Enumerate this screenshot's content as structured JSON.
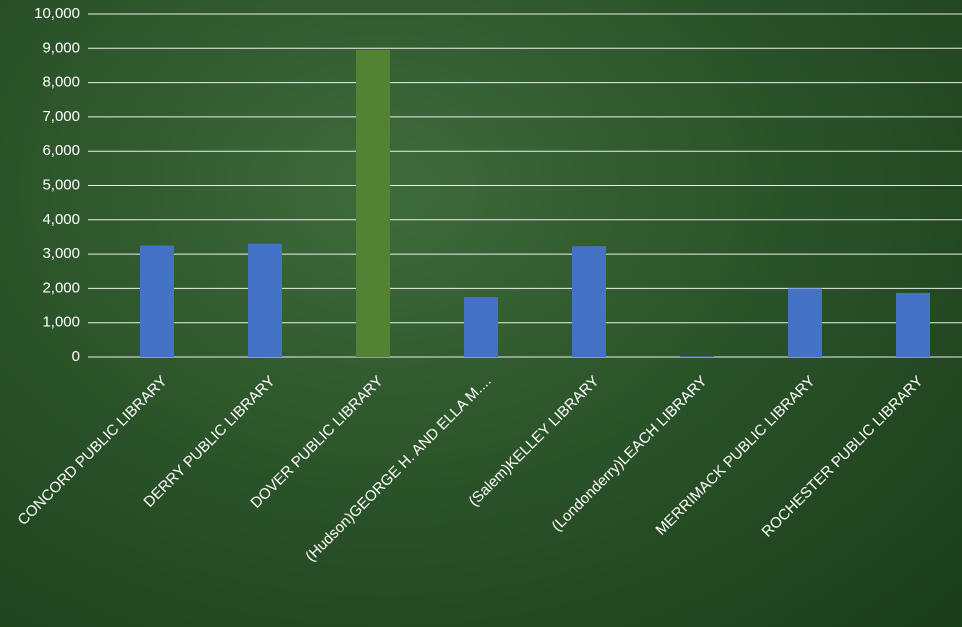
{
  "chart_data": {
    "type": "bar",
    "categories": [
      "CONCORD PUBLIC LIBRARY",
      "DERRY PUBLIC LIBRARY",
      "DOVER PUBLIC LIBRARY",
      "(Hudson)GEORGE H. AND ELLA M....",
      "(Salem)KELLEY LIBRARY",
      "(Londonderry)LEACH LIBRARY",
      "MERRIMACK PUBLIC LIBRARY",
      "ROCHESTER PUBLIC LIBRARY"
    ],
    "values": [
      3250,
      3300,
      8950,
      1750,
      3230,
      20,
      2000,
      1870
    ],
    "colors": [
      "#4472c4",
      "#4472c4",
      "#548235",
      "#4472c4",
      "#4472c4",
      "#4472c4",
      "#4472c4",
      "#4472c4"
    ],
    "ylim": [
      0,
      10000
    ],
    "yticks": [
      0,
      {
        "value": 1000,
        "label": "1,000"
      },
      {
        "value": 2000,
        "label": "2,000"
      },
      {
        "value": 3000,
        "label": "3,000"
      },
      {
        "value": 4000,
        "label": "4,000"
      },
      {
        "value": 5000,
        "label": "5,000"
      },
      {
        "value": 6000,
        "label": "6,000"
      },
      {
        "value": 7000,
        "label": "7,000"
      },
      {
        "value": 8000,
        "label": "8,000"
      },
      {
        "value": 9000,
        "label": "9,000"
      },
      {
        "value": 10000,
        "label": "10,000"
      }
    ],
    "grid": true
  }
}
